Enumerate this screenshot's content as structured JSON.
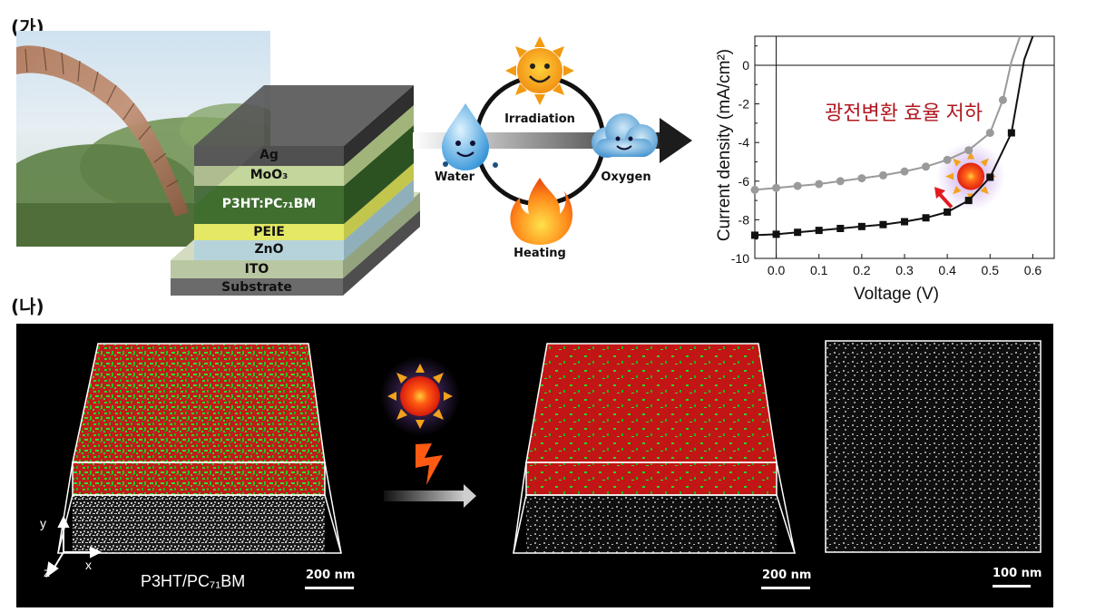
{
  "panel_a": {
    "label": "(가)",
    "layers": [
      {
        "key": "ag",
        "text": "Ag"
      },
      {
        "key": "moo3",
        "text": "MoO₃"
      },
      {
        "key": "active",
        "text": "P3HT:PC₇₁BM"
      },
      {
        "key": "peie",
        "text": "PEIE"
      },
      {
        "key": "zno",
        "text": "ZnO"
      },
      {
        "key": "ito",
        "text": "ITO"
      },
      {
        "key": "substrate",
        "text": "Substrate"
      }
    ],
    "cycle": {
      "irradiation": "Irradiation",
      "water": "Water",
      "oxygen": "Oxygen",
      "heating": "Heating"
    }
  },
  "panel_b": {
    "label": "(나)",
    "sample_label": "P3HT/PC₇₁BM",
    "axes": {
      "x": "x",
      "y": "y",
      "z": "z"
    },
    "scale_bars": [
      "200 nm",
      "200 nm",
      "100 nm"
    ]
  },
  "chart_data": {
    "type": "line",
    "xlabel": "Voltage (V)",
    "ylabel": "Current density (mA/cm²)",
    "xlim": [
      -0.05,
      0.65
    ],
    "ylim": [
      -10,
      1.5
    ],
    "xticks": [
      "0.0",
      "0.1",
      "0.2",
      "0.3",
      "0.4",
      "0.5",
      "0.6"
    ],
    "yticks": [
      "-10",
      "-8",
      "-6",
      "-4",
      "-2",
      "0"
    ],
    "annotation": "광전변환 효율 저하",
    "grid": false,
    "series": [
      {
        "marker": "square",
        "color": "#111111",
        "x": [
          -0.05,
          0,
          0.05,
          0.1,
          0.15,
          0.2,
          0.25,
          0.3,
          0.35,
          0.4,
          0.45,
          0.5,
          0.55,
          0.58,
          0.6
        ],
        "y": [
          -8.8,
          -8.75,
          -8.65,
          -8.55,
          -8.45,
          -8.35,
          -8.25,
          -8.1,
          -7.9,
          -7.6,
          -7.0,
          -5.8,
          -3.5,
          0.3,
          1.5
        ]
      },
      {
        "marker": "circle",
        "color": "#9a9a9a",
        "x": [
          -0.05,
          0,
          0.05,
          0.1,
          0.15,
          0.2,
          0.25,
          0.3,
          0.35,
          0.4,
          0.45,
          0.5,
          0.53,
          0.55,
          0.57
        ],
        "y": [
          -6.45,
          -6.35,
          -6.25,
          -6.15,
          -6.0,
          -5.85,
          -5.7,
          -5.5,
          -5.25,
          -4.9,
          -4.4,
          -3.5,
          -1.8,
          0.2,
          1.5
        ]
      }
    ]
  }
}
